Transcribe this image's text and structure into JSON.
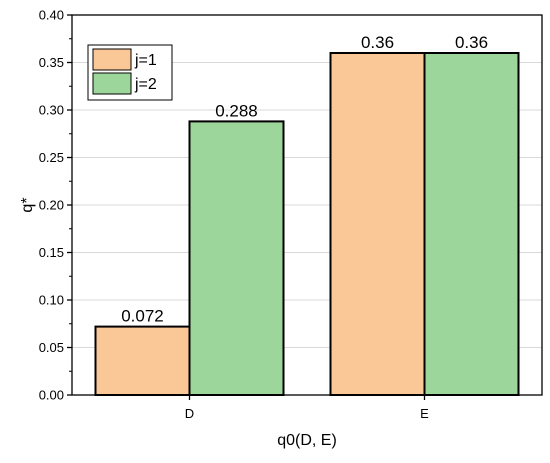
{
  "chart_data": {
    "type": "bar",
    "categories": [
      "D",
      "E"
    ],
    "series": [
      {
        "name": "j=1",
        "values": [
          0.072,
          0.36
        ],
        "color": "#fac896"
      },
      {
        "name": "j=2",
        "values": [
          0.288,
          0.36
        ],
        "color": "#9dd69a"
      }
    ],
    "data_labels": [
      [
        "0.072",
        "0.36"
      ],
      [
        "0.288",
        "0.36"
      ]
    ],
    "xlabel": "q0(D, E)",
    "ylabel": "q*",
    "ylim": [
      0,
      0.4
    ],
    "yticks": [
      0.0,
      0.05,
      0.1,
      0.15,
      0.2,
      0.25,
      0.3,
      0.35,
      0.4
    ],
    "ytick_labels": [
      "0.00",
      "0.05",
      "0.10",
      "0.15",
      "0.20",
      "0.25",
      "0.30",
      "0.35",
      "0.40"
    ],
    "grid": true,
    "grid_color": "#d9d9d9",
    "bar_border_color": "#000000",
    "legend_position": "top-left"
  }
}
